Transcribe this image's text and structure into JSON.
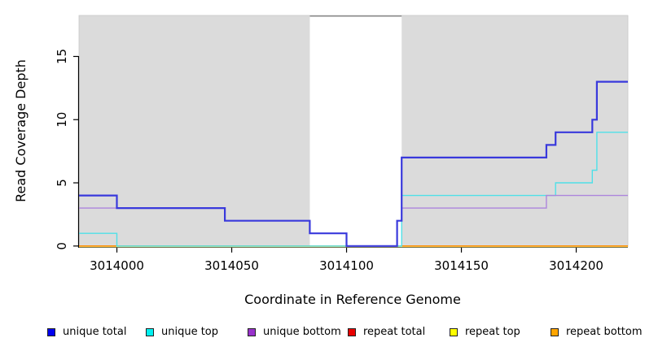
{
  "chart_data": {
    "type": "line",
    "subtype": "step-coverage-plot",
    "title": "",
    "xlabel": "Coordinate in Reference Genome",
    "ylabel": "Read Coverage Depth",
    "xlim": [
      3013983.5,
      3014222.5
    ],
    "ylim": [
      0,
      18.2
    ],
    "grid": false,
    "x_ticks": [
      {
        "value": 3014000,
        "label": "3014000"
      },
      {
        "value": 3014050,
        "label": "3014050"
      },
      {
        "value": 3014100,
        "label": "3014100"
      },
      {
        "value": 3014150,
        "label": "3014150"
      },
      {
        "value": 3014200,
        "label": "3014200"
      }
    ],
    "y_ticks": [
      {
        "value": 0,
        "label": "0"
      },
      {
        "value": 5,
        "label": "5"
      },
      {
        "value": 10,
        "label": "10"
      },
      {
        "value": 15,
        "label": "15"
      }
    ],
    "plot_background_color": "#DBDBDB",
    "plot_background_edge_color": "#C9C9C9",
    "uncovered_region": {
      "from": 3014084,
      "to": 3014124,
      "fill": "#FFFFFF",
      "top_border_color": "#8A8A8A"
    },
    "series": [
      {
        "name": "unique total",
        "color": "#3939DC",
        "line_width": 2.2,
        "points": [
          [
            3013983.5,
            4
          ],
          [
            3014000,
            3
          ],
          [
            3014047,
            2
          ],
          [
            3014084,
            1
          ],
          [
            3014100,
            0
          ],
          [
            3014122,
            2
          ],
          [
            3014124,
            7
          ],
          [
            3014187,
            8
          ],
          [
            3014191,
            9
          ],
          [
            3014207,
            10
          ],
          [
            3014209,
            13
          ],
          [
            3014222.5,
            13
          ]
        ]
      },
      {
        "name": "unique top",
        "color": "#4FE0E8",
        "line_width": 1.4,
        "points": [
          [
            3013983.5,
            1
          ],
          [
            3014000,
            0
          ],
          [
            3014124,
            4
          ],
          [
            3014191,
            5
          ],
          [
            3014207,
            6
          ],
          [
            3014209,
            9
          ],
          [
            3014222.5,
            9
          ]
        ]
      },
      {
        "name": "unique bottom",
        "color": "#AD85DC",
        "line_width": 1.4,
        "points": [
          [
            3013983.5,
            3
          ],
          [
            3014047,
            2
          ],
          [
            3014084,
            1
          ],
          [
            3014100,
            0
          ],
          [
            3014122,
            2
          ],
          [
            3014124,
            3
          ],
          [
            3014187,
            4
          ],
          [
            3014222.5,
            4
          ]
        ]
      },
      {
        "name": "repeat total",
        "color": "#DD1111",
        "line_width": 1.3,
        "points": [
          [
            3013983.5,
            0
          ],
          [
            3014222.5,
            0
          ]
        ]
      },
      {
        "name": "repeat top",
        "color": "#EDE98A",
        "line_width": 1.2,
        "points": [
          [
            3013983.5,
            0
          ],
          [
            3014222.5,
            0
          ]
        ]
      },
      {
        "name": "repeat bottom",
        "color": "#FF8C00",
        "line_width": 1.5,
        "points": [
          [
            3013983.5,
            0
          ],
          [
            3014222.5,
            0
          ]
        ]
      }
    ],
    "draw_order": [
      3,
      4,
      5,
      1,
      2,
      0
    ],
    "legend_position": "bottom"
  },
  "legend": {
    "items": [
      {
        "label": "unique total",
        "color": "#0000F0"
      },
      {
        "label": "unique top",
        "color": "#00F0F0"
      },
      {
        "label": "unique bottom",
        "color": "#9932CC"
      },
      {
        "label": "repeat total",
        "color": "#E80000"
      },
      {
        "label": "repeat top",
        "color": "#FFFF00"
      },
      {
        "label": "repeat bottom",
        "color": "#FFA500"
      }
    ]
  },
  "axis_color": "#000000",
  "text_color": "#000000"
}
